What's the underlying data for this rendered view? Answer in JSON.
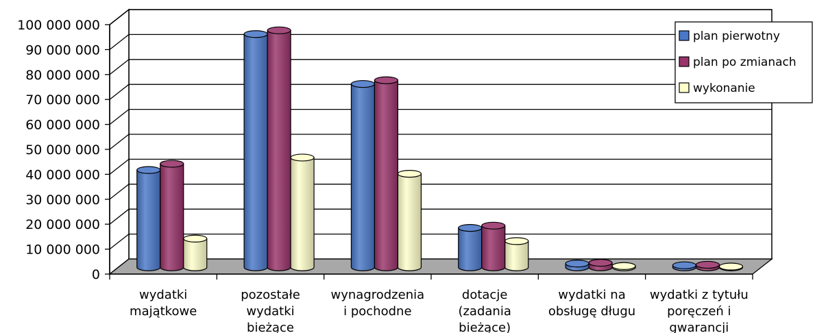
{
  "chart_data": {
    "type": "bar",
    "title": "",
    "xlabel": "",
    "ylabel": "",
    "ylim": [
      0,
      100000000
    ],
    "y_ticks": [
      "0",
      "10 000 000",
      "20 000 000",
      "30 000 000",
      "40 000 000",
      "50 000 000",
      "60 000 000",
      "70 000 000",
      "80 000 000",
      "90 000 000",
      "100 000 000"
    ],
    "categories": [
      [
        "wydatki",
        "majątkowe"
      ],
      [
        "pozostałe",
        "wydatki",
        "bieżące"
      ],
      [
        "wynagrodzenia",
        "i pochodne"
      ],
      [
        "dotacje",
        "(zadania",
        "bieżące)"
      ],
      [
        "wydatki na",
        "obsługę długu"
      ],
      [
        "wydatki z tytułu",
        "poręczeń i",
        "gwarancji"
      ]
    ],
    "series": [
      {
        "name": "plan pierwotny",
        "color": "#4a78c8",
        "values": [
          39000000,
          93500000,
          73500000,
          15800000,
          1500000,
          800000
        ]
      },
      {
        "name": "plan po zmianach",
        "color": "#99336a",
        "values": [
          41500000,
          95000000,
          75000000,
          16700000,
          1800000,
          1000000
        ]
      },
      {
        "name": "wykonanie",
        "color": "#ffffcc",
        "values": [
          11500000,
          44000000,
          37500000,
          10500000,
          500000,
          300000
        ]
      }
    ],
    "grid": true,
    "legend_position": "top-right",
    "view": "3d-cylinder"
  }
}
